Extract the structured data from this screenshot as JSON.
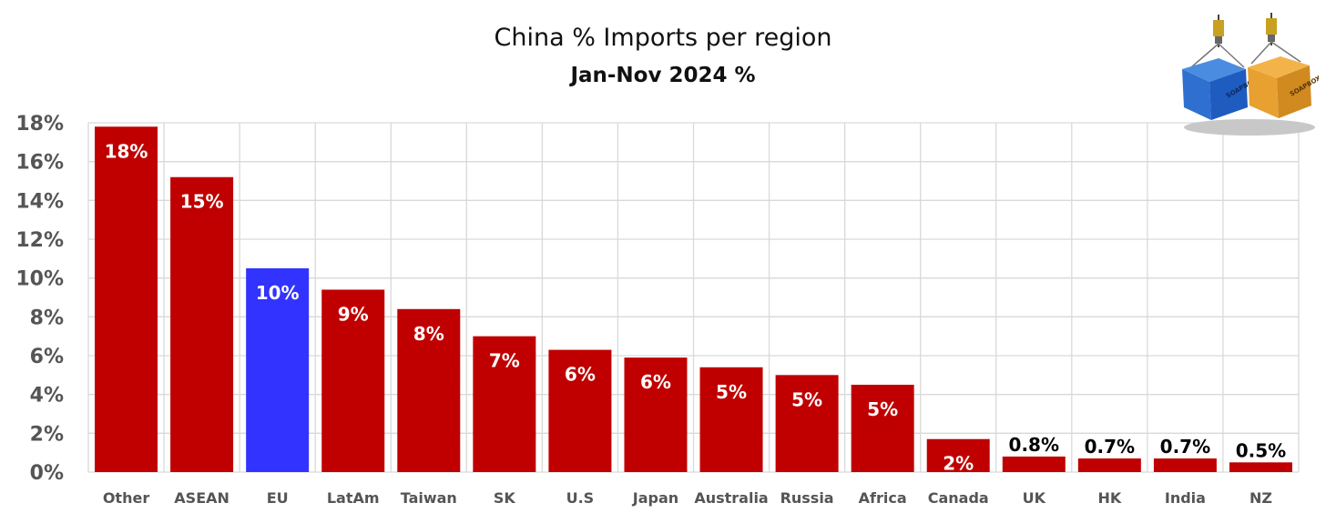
{
  "chart_data": {
    "type": "bar",
    "title": "China % Imports per region",
    "subtitle": "Jan-Nov 2024 %",
    "categories": [
      "Other",
      "ASEAN",
      "EU",
      "LatAm",
      "Taiwan",
      "SK",
      "U.S",
      "Japan",
      "Australia",
      "Russia",
      "Africa",
      "Canada",
      "UK",
      "HK",
      "India",
      "NZ"
    ],
    "values": [
      17.8,
      15.2,
      10.5,
      9.4,
      8.4,
      7.0,
      6.3,
      5.9,
      5.4,
      5.0,
      4.5,
      1.7,
      0.8,
      0.7,
      0.7,
      0.5
    ],
    "data_labels": [
      "18%",
      "15%",
      "10%",
      "9%",
      "8%",
      "7%",
      "6%",
      "6%",
      "5%",
      "5%",
      "5%",
      "2%",
      "0.8%",
      "0.7%",
      "0.7%",
      "0.5%"
    ],
    "ylim": [
      0,
      18
    ],
    "yticks": [
      0,
      2,
      4,
      6,
      8,
      10,
      12,
      14,
      16,
      18
    ],
    "ytick_labels": [
      "0%",
      "2%",
      "4%",
      "6%",
      "8%",
      "10%",
      "12%",
      "14%",
      "16%",
      "18%"
    ],
    "grid": true,
    "highlight_category": "EU",
    "colors": {
      "bar": "#c00000",
      "highlight": "#3333ff",
      "grid": "#d9d9d9",
      "label_inside": "#ffffff",
      "label_outside": "#000000"
    }
  },
  "logo": {
    "icon": "shipping-containers-logo",
    "text_left": "SOAPBOX",
    "text_right": "SOAPBOX"
  }
}
